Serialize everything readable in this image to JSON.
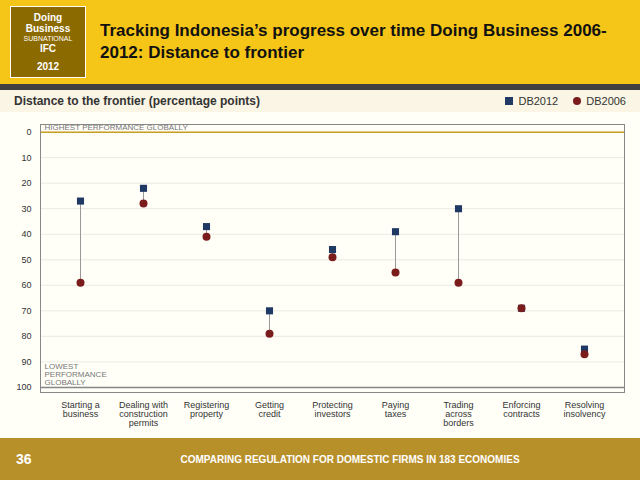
{
  "chart_data": {
    "type": "dumbbell",
    "title": "Tracking Indonesia’s progress over time Doing Business 2006-2012: Distance to frontier",
    "subtitle": "Distance to the frontier (percentage points)",
    "categories": [
      "Starting a\nbusiness",
      "Dealing with\nconstruction\npermits",
      "Registering\nproperty",
      "Getting\ncredit",
      "Protecting\ninvestors",
      "Paying\ntaxes",
      "Trading\nacross\nborders",
      "Enforcing\ncontracts",
      "Resolving\ninsolvency"
    ],
    "series": [
      {
        "name": "DB2012",
        "color": "#1F3864",
        "marker": "square",
        "values": [
          27,
          22,
          37,
          70,
          46,
          39,
          30,
          69,
          85
        ]
      },
      {
        "name": "DB2006",
        "color": "#7B1C1C",
        "marker": "circle",
        "values": [
          59,
          28,
          41,
          79,
          49,
          55,
          59,
          69,
          87
        ]
      }
    ],
    "ylim": [
      102,
      -3
    ],
    "yticks": [
      0,
      10,
      20,
      30,
      40,
      50,
      60,
      70,
      80,
      90,
      100
    ],
    "grid": true,
    "legend": "upper right",
    "reference_lines": [
      {
        "y": 0,
        "color": "#C8A020"
      },
      {
        "y": 100,
        "color": "#888888"
      }
    ],
    "annotations": [
      {
        "text": "HIGHEST PERFORMANCE GLOBALLY",
        "y": 0
      },
      {
        "text": "LOWEST\nPERFORMANCE\nGLOBALLY",
        "y": 100
      }
    ],
    "logo": [
      "Doing",
      "Business",
      "SUBNATIONAL",
      "IFC",
      "2012"
    ],
    "page_number": "36",
    "caption": "COMPARING REGULATION FOR DOMESTIC FIRMS IN 183 ECONOMIES"
  }
}
